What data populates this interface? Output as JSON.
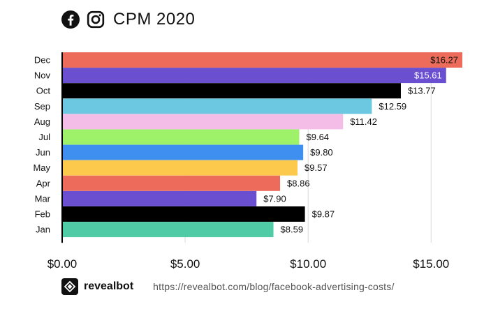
{
  "header": {
    "title": "CPM 2020",
    "icons": [
      "facebook-icon",
      "instagram-icon"
    ]
  },
  "chart_data": {
    "type": "bar",
    "orientation": "horizontal",
    "title": "CPM 2020",
    "xlabel": "",
    "ylabel": "",
    "categories": [
      "Dec",
      "Nov",
      "Oct",
      "Sep",
      "Aug",
      "Jul",
      "Jun",
      "May",
      "Apr",
      "Mar",
      "Feb",
      "Jan"
    ],
    "values": [
      16.27,
      15.61,
      13.77,
      12.59,
      11.42,
      9.64,
      9.8,
      9.57,
      8.86,
      7.9,
      9.87,
      8.59
    ],
    "value_labels": [
      "$16.27",
      "$15.61",
      "$13.77",
      "$12.59",
      "$11.42",
      "$9.64",
      "$9.80",
      "$9.57",
      "$8.86",
      "$7.90",
      "$9.87",
      "$8.59"
    ],
    "colors": [
      "#ec6b5b",
      "#6a4fd1",
      "#000000",
      "#6cc7e0",
      "#f4bde8",
      "#9ef26a",
      "#3e8ff0",
      "#fcc94c",
      "#ec6b5b",
      "#6a4fd1",
      "#000000",
      "#4fcca5"
    ],
    "label_inside": [
      true,
      true,
      false,
      false,
      false,
      false,
      false,
      false,
      false,
      false,
      false,
      false
    ],
    "xlim": [
      0,
      16.27
    ],
    "xticks": [
      0,
      5,
      10,
      15
    ],
    "xtick_labels": [
      "$0.00",
      "$5.00",
      "$10.00",
      "$15.00"
    ],
    "grid": "vertical",
    "legend": "none"
  },
  "footer": {
    "brand": "revealbot",
    "url": "https://revealbot.com/blog/facebook-advertising-costs/"
  }
}
